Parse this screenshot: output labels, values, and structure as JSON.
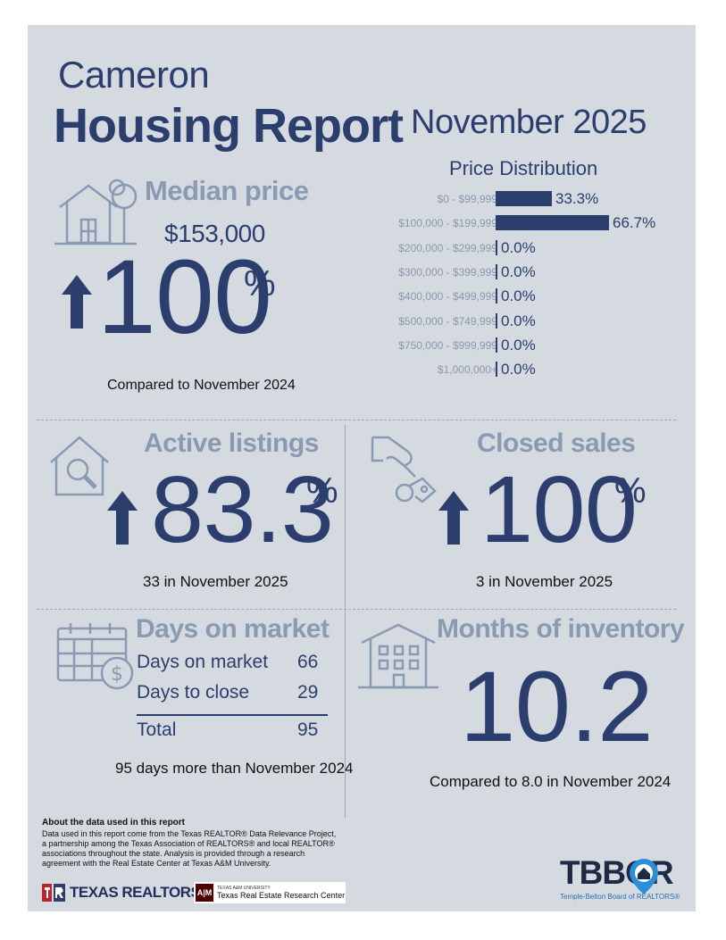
{
  "header": {
    "city": "Cameron",
    "title": "Housing Report",
    "period": "November 2025"
  },
  "median_price": {
    "label": "Median price",
    "value": "$153,000",
    "change": "100",
    "unit": "%",
    "direction": "up",
    "note": "Compared to November 2024"
  },
  "price_distribution": {
    "title": "Price Distribution",
    "rows": [
      {
        "range": "$0 - $99,999",
        "pct_label": "33.3%",
        "pct": 33.3
      },
      {
        "range": "$100,000 - $199,999",
        "pct_label": "66.7%",
        "pct": 66.7
      },
      {
        "range": "$200,000 - $299,999",
        "pct_label": "0.0%",
        "pct": 0
      },
      {
        "range": "$300,000 - $399,999",
        "pct_label": "0.0%",
        "pct": 0
      },
      {
        "range": "$400,000 - $499,999",
        "pct_label": "0.0%",
        "pct": 0
      },
      {
        "range": "$500,000 - $749,999",
        "pct_label": "0.0%",
        "pct": 0
      },
      {
        "range": "$750,000 - $999,999",
        "pct_label": "0.0%",
        "pct": 0
      },
      {
        "range": "$1,000,000+",
        "pct_label": "0.0%",
        "pct": 0
      }
    ]
  },
  "active_listings": {
    "label": "Active listings",
    "change": "83.3",
    "unit": "%",
    "direction": "up",
    "note": "33 in November 2025"
  },
  "closed_sales": {
    "label": "Closed sales",
    "change": "100",
    "unit": "%",
    "direction": "up",
    "note": "3 in November 2025"
  },
  "days_on_market": {
    "label": "Days on market",
    "rows": [
      {
        "name": "Days on market",
        "value": "66"
      },
      {
        "name": "Days to close",
        "value": "29"
      }
    ],
    "total_label": "Total",
    "total_value": "95",
    "note": "95 days more than November 2024"
  },
  "months_inventory": {
    "label": "Months of inventory",
    "value": "10.2",
    "note": "Compared to 8.0 in November 2024"
  },
  "footer": {
    "about_title": "About the data used in this report",
    "about_text": "Data used in this report come from the Texas REALTOR® Data Relevance Project, a partnership among the Texas Association of REALTORS® and local REALTOR® associations throughout the state. Analysis is provided through a research agreement with the Real Estate Center at Texas A&M University.",
    "texas_realtors": "TEXAS REALTORS",
    "tamu_small": "TEXAS A&M UNIVERSITY",
    "tamu_center": "Texas Real Estate Research Center",
    "tbbor_logo": "TBBOR",
    "tbbor_name": "Temple-Belton Board of REALTORS®"
  },
  "colors": {
    "navy": "#2b3e6e",
    "steel": "#8a9ab2",
    "background": "#d5dae1",
    "accent_red": "#b8262c",
    "tbbor_blue": "#2a8fd6"
  }
}
